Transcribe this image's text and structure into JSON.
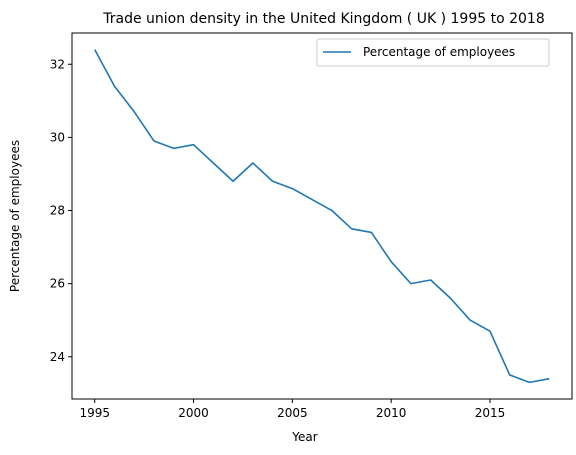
{
  "chart_data": {
    "type": "line",
    "title": "Trade union density in the United Kingdom ( UK ) 1995 to 2018",
    "xlabel": "Year",
    "ylabel": "Percentage of employees",
    "x": [
      1995,
      1996,
      1997,
      1998,
      1999,
      2000,
      2001,
      2002,
      2003,
      2004,
      2005,
      2006,
      2007,
      2008,
      2009,
      2010,
      2011,
      2012,
      2013,
      2014,
      2015,
      2016,
      2017,
      2018
    ],
    "series": [
      {
        "name": "Percentage of employees",
        "color": "#1f77b4",
        "values": [
          32.4,
          31.4,
          30.7,
          29.9,
          29.7,
          29.8,
          29.3,
          28.8,
          29.3,
          28.8,
          28.6,
          28.3,
          28.0,
          27.5,
          27.4,
          26.6,
          26.0,
          26.1,
          25.6,
          25.0,
          24.7,
          23.5,
          23.3,
          23.4
        ]
      }
    ],
    "xlim": [
      1993.85,
      2019.15
    ],
    "ylim": [
      22.845,
      32.855
    ],
    "x_ticks": [
      1995,
      2000,
      2005,
      2010,
      2015
    ],
    "y_ticks": [
      24,
      26,
      28,
      30,
      32
    ],
    "grid": false,
    "legend_position": "upper right"
  }
}
